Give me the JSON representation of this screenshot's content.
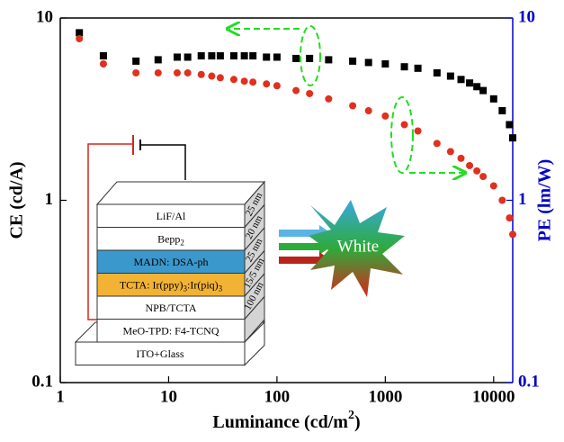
{
  "chart_data": {
    "type": "scatter",
    "x_label": {
      "text": "Luminance (cd/m",
      "sup": "2",
      "end": ")"
    },
    "y_label": "CE (cd/A)",
    "y2_label": "PE (lm/W)",
    "xlim": [
      1,
      15000
    ],
    "xticks": [
      1,
      10,
      100,
      1000,
      10000
    ],
    "log_x": true,
    "ylim": [
      0.1,
      10
    ],
    "yticks": [
      0.1,
      1,
      10
    ],
    "log_y": true,
    "y2lim": [
      0.1,
      10
    ],
    "y2ticks": [
      0.1,
      1,
      10
    ],
    "y2_color": "#0000cc",
    "x": [
      1.5,
      2.5,
      5,
      8,
      12,
      15,
      20,
      25,
      30,
      40,
      50,
      60,
      80,
      100,
      150,
      200,
      300,
      500,
      700,
      1000,
      1500,
      2000,
      3000,
      4000,
      5000,
      6000,
      7000,
      8000,
      10000,
      12000,
      14000,
      15000
    ],
    "series": [
      {
        "color": "#000000",
        "marker": "square",
        "values": [
          8.3,
          6.2,
          5.8,
          5.9,
          6.1,
          6.1,
          6.2,
          6.2,
          6.2,
          6.2,
          6.2,
          6.2,
          6.1,
          6.1,
          6.0,
          6.0,
          5.9,
          5.8,
          5.7,
          5.6,
          5.4,
          5.3,
          5.0,
          4.8,
          4.6,
          4.4,
          4.2,
          4.0,
          3.6,
          3.1,
          2.6,
          2.2
        ]
      },
      {
        "color": "#e0301e",
        "marker": "circle",
        "axis": "y2",
        "values": [
          7.7,
          5.6,
          5.0,
          5.0,
          5.0,
          5.0,
          4.9,
          4.8,
          4.7,
          4.6,
          4.5,
          4.45,
          4.35,
          4.25,
          4.0,
          3.85,
          3.6,
          3.3,
          3.1,
          2.9,
          2.6,
          2.4,
          2.05,
          1.85,
          1.7,
          1.55,
          1.45,
          1.35,
          1.2,
          1.0,
          0.8,
          0.65
        ]
      }
    ],
    "inset": {
      "layers": [
        [
          "LiF/Al"
        ],
        [
          "Bepp",
          "2"
        ],
        [
          "MADN: DSA-ph"
        ],
        [
          "TCTA: Ir(ppy)",
          "3",
          ":Ir(piq)",
          "3"
        ],
        [
          "NPB/TCTA"
        ],
        [
          "MeO-TPD: F4-TCNQ"
        ],
        [
          "ITO+Glass"
        ]
      ],
      "thickness": [
        "25 nm",
        "20 nm",
        "25 nm",
        "15/5 nm",
        "100 nm"
      ],
      "output": "White"
    }
  }
}
